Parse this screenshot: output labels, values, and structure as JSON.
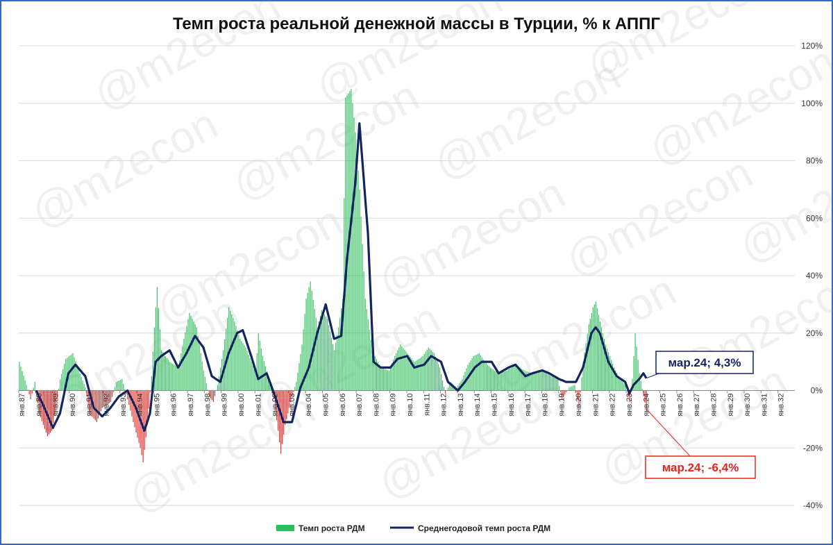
{
  "watermark": "@m2econ",
  "chart_data": {
    "type": "bar",
    "title": "Темп роста реальной денежной массы в Турции, % к АППГ",
    "ylim": [
      -40,
      120
    ],
    "yticks": [
      "-40%",
      "-20%",
      "0%",
      "20%",
      "40%",
      "60%",
      "80%",
      "100%",
      "120%"
    ],
    "ytick_values": [
      -40,
      -20,
      0,
      20,
      40,
      60,
      80,
      100,
      120
    ],
    "y_axis_side": "right",
    "grid": true,
    "x_start_year": 1987,
    "x_end_year": 2032,
    "xtick_labels": [
      "янв.87",
      "янв.88",
      "янв.89",
      "янв.90",
      "янв.91",
      "янв.92",
      "янв.93",
      "янв.94",
      "янв.95",
      "янв.96",
      "янв.97",
      "янв.98",
      "янв.99",
      "янв.00",
      "янв.01",
      "янв.02",
      "янв.03",
      "янв.04",
      "янв.05",
      "янв.06",
      "янв.07",
      "янв.08",
      "янв.09",
      "янв.10",
      "янв.11",
      "янв.12",
      "янв.13",
      "янв.14",
      "янв.15",
      "янв.16",
      "янв.17",
      "янв.18",
      "янв.19",
      "янв.20",
      "янв.21",
      "янв.22",
      "янв.23",
      "янв.24",
      "янв.25",
      "янв.26",
      "янв.27",
      "янв.28",
      "янв.29",
      "янв.30",
      "янв.31",
      "янв.32"
    ],
    "positive_color": "#2dbd5a",
    "negative_color": "#e8231e",
    "line_color": "#13245e",
    "legend_position": "bottom",
    "series": [
      {
        "name": "Темп роста РДМ",
        "kind": "bar",
        "monthly_anchors": [
          [
            "1987-01",
            10
          ],
          [
            "1987-06",
            2
          ],
          [
            "1987-09",
            -3
          ],
          [
            "1987-12",
            3
          ],
          [
            "1988-03",
            -8
          ],
          [
            "1988-09",
            -16
          ],
          [
            "1988-12",
            -14
          ],
          [
            "1989-03",
            -6
          ],
          [
            "1989-06",
            4
          ],
          [
            "1989-10",
            11
          ],
          [
            "1990-03",
            13
          ],
          [
            "1990-08",
            6
          ],
          [
            "1990-12",
            1
          ],
          [
            "1991-03",
            -8
          ],
          [
            "1991-08",
            -11
          ],
          [
            "1991-12",
            -6
          ],
          [
            "1992-06",
            -4
          ],
          [
            "1992-10",
            3
          ],
          [
            "1993-02",
            4
          ],
          [
            "1993-06",
            -3
          ],
          [
            "1993-10",
            -11
          ],
          [
            "1994-03",
            -20
          ],
          [
            "1994-05",
            -25
          ],
          [
            "1994-08",
            -12
          ],
          [
            "1994-11",
            5
          ],
          [
            "1995-01",
            22
          ],
          [
            "1995-03",
            36
          ],
          [
            "1995-06",
            14
          ],
          [
            "1995-12",
            10
          ],
          [
            "1996-06",
            8
          ],
          [
            "1996-10",
            18
          ],
          [
            "1997-02",
            27
          ],
          [
            "1997-07",
            22
          ],
          [
            "1997-12",
            7
          ],
          [
            "1998-04",
            -2
          ],
          [
            "1998-07",
            -4
          ],
          [
            "1998-10",
            2
          ],
          [
            "1999-02",
            14
          ],
          [
            "1999-06",
            29
          ],
          [
            "1999-10",
            24
          ],
          [
            "2000-02",
            18
          ],
          [
            "2000-06",
            15
          ],
          [
            "2000-10",
            10
          ],
          [
            "2001-01",
            6
          ],
          [
            "2001-03",
            20
          ],
          [
            "2001-06",
            12
          ],
          [
            "2001-10",
            5
          ],
          [
            "2002-02",
            -3
          ],
          [
            "2002-05",
            -14
          ],
          [
            "2002-07",
            -22
          ],
          [
            "2002-10",
            -12
          ],
          [
            "2003-02",
            -4
          ],
          [
            "2003-06",
            3
          ],
          [
            "2003-10",
            16
          ],
          [
            "2004-01",
            32
          ],
          [
            "2004-04",
            38
          ],
          [
            "2004-09",
            22
          ],
          [
            "2004-12",
            28
          ],
          [
            "2005-04",
            25
          ],
          [
            "2005-09",
            14
          ],
          [
            "2005-12",
            22
          ],
          [
            "2006-03",
            32
          ],
          [
            "2006-05",
            102
          ],
          [
            "2006-09",
            105
          ],
          [
            "2006-12",
            90
          ],
          [
            "2007-03",
            70
          ],
          [
            "2007-07",
            32
          ],
          [
            "2007-12",
            14
          ],
          [
            "2008-06",
            8
          ],
          [
            "2008-12",
            7
          ],
          [
            "2009-04",
            12
          ],
          [
            "2009-08",
            16
          ],
          [
            "2010-01",
            13
          ],
          [
            "2010-06",
            10
          ],
          [
            "2010-12",
            12
          ],
          [
            "2011-04",
            15
          ],
          [
            "2011-08",
            13
          ],
          [
            "2011-12",
            8
          ],
          [
            "2012-04",
            -1
          ],
          [
            "2012-08",
            3
          ],
          [
            "2012-12",
            1
          ],
          [
            "2013-04",
            4
          ],
          [
            "2013-08",
            9
          ],
          [
            "2013-12",
            12
          ],
          [
            "2014-04",
            13
          ],
          [
            "2014-08",
            10
          ],
          [
            "2014-12",
            8
          ],
          [
            "2015-06",
            6
          ],
          [
            "2015-12",
            7
          ],
          [
            "2016-06",
            9
          ],
          [
            "2016-12",
            7
          ],
          [
            "2017-06",
            6
          ],
          [
            "2017-12",
            7
          ],
          [
            "2018-06",
            6
          ],
          [
            "2018-12",
            4
          ],
          [
            "2019-03",
            -3
          ],
          [
            "2019-08",
            1
          ],
          [
            "2019-12",
            2
          ],
          [
            "2020-03",
            -6
          ],
          [
            "2020-06",
            10
          ],
          [
            "2020-10",
            23
          ],
          [
            "2021-01",
            29
          ],
          [
            "2021-03",
            31
          ],
          [
            "2021-06",
            24
          ],
          [
            "2021-10",
            16
          ],
          [
            "2022-01",
            12
          ],
          [
            "2022-04",
            8
          ],
          [
            "2022-08",
            4
          ],
          [
            "2022-12",
            2
          ],
          [
            "2023-03",
            -4
          ],
          [
            "2023-05",
            4
          ],
          [
            "2023-07",
            20
          ],
          [
            "2023-10",
            6
          ],
          [
            "2024-01",
            -2
          ],
          [
            "2024-03",
            -6.4
          ]
        ]
      },
      {
        "name": "Среднегодовой темп роста РДМ",
        "kind": "line",
        "monthly_anchors": [
          [
            "1988-01",
            0
          ],
          [
            "1988-06",
            -5
          ],
          [
            "1989-01",
            -13
          ],
          [
            "1989-06",
            -8
          ],
          [
            "1989-12",
            6
          ],
          [
            "1990-05",
            9
          ],
          [
            "1990-12",
            5
          ],
          [
            "1991-06",
            -6
          ],
          [
            "1991-12",
            -9
          ],
          [
            "1992-06",
            -6
          ],
          [
            "1992-12",
            -2
          ],
          [
            "1993-06",
            0
          ],
          [
            "1993-12",
            -6
          ],
          [
            "1994-06",
            -14
          ],
          [
            "1994-10",
            -8
          ],
          [
            "1995-02",
            10
          ],
          [
            "1995-06",
            12
          ],
          [
            "1995-12",
            14
          ],
          [
            "1996-06",
            8
          ],
          [
            "1996-12",
            13
          ],
          [
            "1997-06",
            19
          ],
          [
            "1997-12",
            15
          ],
          [
            "1998-06",
            5
          ],
          [
            "1998-12",
            3
          ],
          [
            "1999-06",
            13
          ],
          [
            "1999-12",
            20
          ],
          [
            "2000-04",
            21
          ],
          [
            "2000-10",
            12
          ],
          [
            "2001-03",
            4
          ],
          [
            "2001-09",
            6
          ],
          [
            "2002-03",
            -2
          ],
          [
            "2002-09",
            -11
          ],
          [
            "2003-03",
            -11
          ],
          [
            "2003-09",
            1
          ],
          [
            "2004-03",
            8
          ],
          [
            "2004-09",
            20
          ],
          [
            "2005-03",
            30
          ],
          [
            "2005-09",
            18
          ],
          [
            "2006-02",
            19
          ],
          [
            "2006-06",
            45
          ],
          [
            "2006-12",
            72
          ],
          [
            "2007-03",
            93
          ],
          [
            "2007-09",
            55
          ],
          [
            "2008-01",
            10
          ],
          [
            "2008-06",
            8
          ],
          [
            "2009-01",
            8
          ],
          [
            "2009-06",
            11
          ],
          [
            "2010-01",
            12
          ],
          [
            "2010-06",
            8
          ],
          [
            "2011-01",
            9
          ],
          [
            "2011-06",
            12
          ],
          [
            "2012-01",
            10
          ],
          [
            "2012-06",
            3
          ],
          [
            "2013-01",
            0
          ],
          [
            "2013-06",
            3
          ],
          [
            "2014-01",
            8
          ],
          [
            "2014-06",
            10
          ],
          [
            "2015-01",
            10
          ],
          [
            "2015-06",
            6
          ],
          [
            "2016-01",
            8
          ],
          [
            "2016-06",
            9
          ],
          [
            "2017-01",
            5
          ],
          [
            "2017-06",
            6
          ],
          [
            "2018-01",
            7
          ],
          [
            "2018-06",
            6
          ],
          [
            "2019-01",
            4
          ],
          [
            "2019-06",
            3
          ],
          [
            "2020-01",
            3
          ],
          [
            "2020-06",
            8
          ],
          [
            "2020-12",
            20
          ],
          [
            "2021-03",
            22
          ],
          [
            "2021-06",
            20
          ],
          [
            "2021-12",
            10
          ],
          [
            "2022-06",
            5
          ],
          [
            "2022-12",
            3
          ],
          [
            "2023-03",
            -1
          ],
          [
            "2023-06",
            2
          ],
          [
            "2023-10",
            4
          ],
          [
            "2024-01",
            6
          ],
          [
            "2024-03",
            4.3
          ]
        ]
      }
    ],
    "annotations": [
      {
        "id": "line_last",
        "text": "мар.24; 4,3%",
        "color": "#13245e",
        "x": "2024-03",
        "y": 4.3
      },
      {
        "id": "bar_last",
        "text": "мар.24; -6,4%",
        "color": "#e8231e",
        "x": "2024-03",
        "y": -6.4
      }
    ]
  }
}
